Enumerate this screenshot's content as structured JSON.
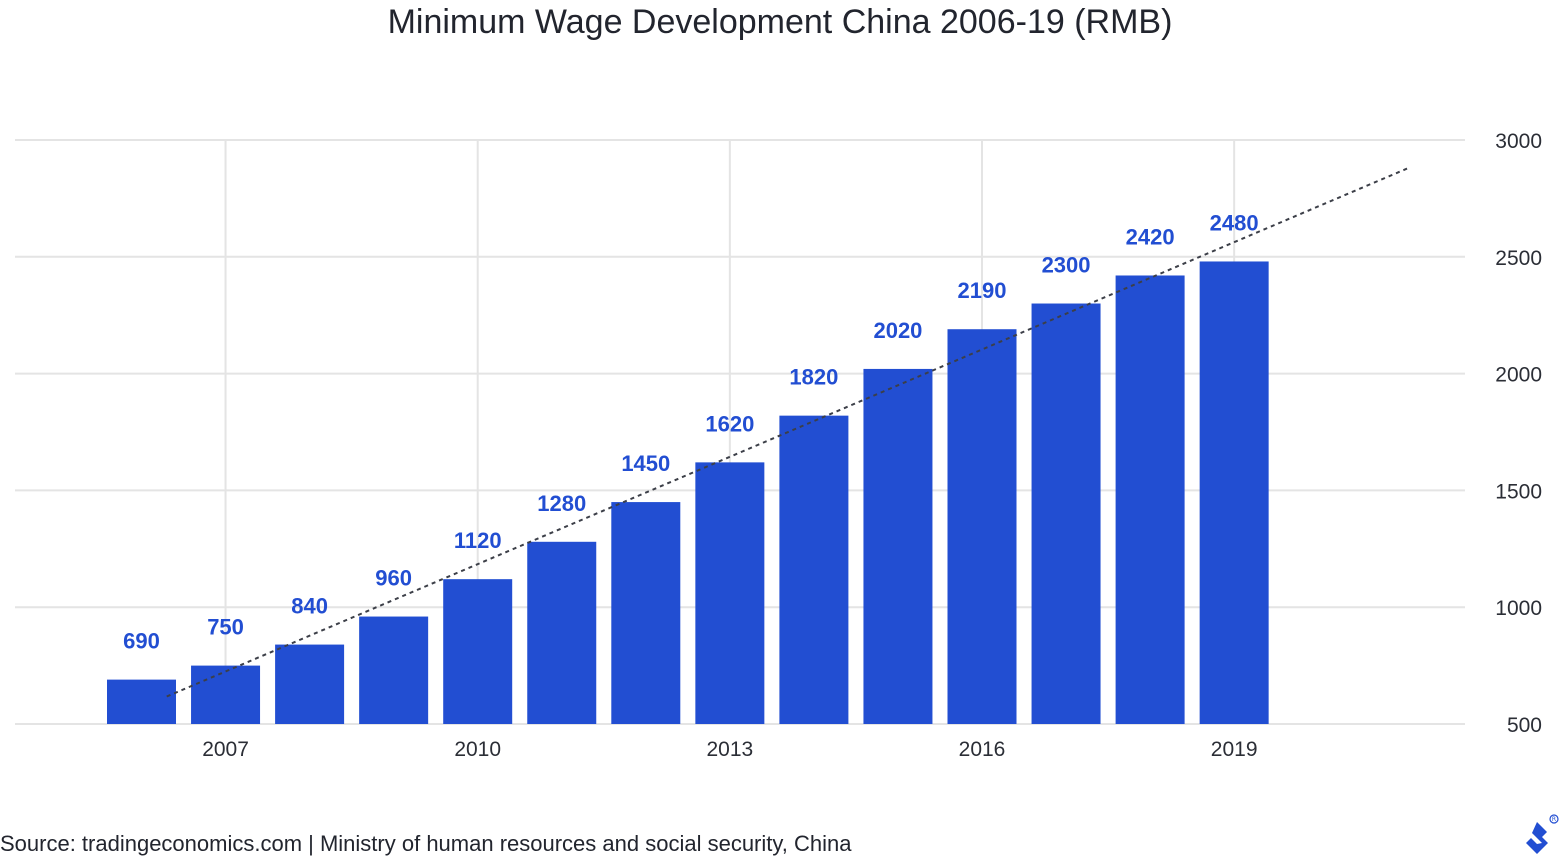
{
  "title": "Minimum Wage Development China 2006-19 (RMB)",
  "source": "Source: tradingeconomics.com | Ministry of human resources and social security, China",
  "colors": {
    "bar": "#224ed2",
    "label": "#224ed2",
    "grid": "#e4e4e4",
    "trend": "#3c3f48",
    "text": "#22252e"
  },
  "chart_data": {
    "type": "bar",
    "title": "Minimum Wage Development China 2006-19 (RMB)",
    "categories": [
      "2006",
      "2007",
      "2008",
      "2009",
      "2010",
      "2011",
      "2012",
      "2013",
      "2014",
      "2015",
      "2016",
      "2017",
      "2018",
      "2019"
    ],
    "values": [
      690,
      750,
      840,
      960,
      1120,
      1280,
      1450,
      1620,
      1820,
      2020,
      2190,
      2300,
      2420,
      2480
    ],
    "data_labels": [
      "690",
      "750",
      "840",
      "960",
      "1120",
      "1280",
      "1450",
      "1620",
      "1820",
      "2020",
      "2190",
      "2300",
      "2420",
      "2480"
    ],
    "x_tick_labels": [
      "2007",
      "2010",
      "2013",
      "2016",
      "2019"
    ],
    "y_ticks": [
      500,
      1000,
      1500,
      2000,
      2500,
      3000
    ],
    "y_axis_position": "right",
    "ylim": [
      500,
      3000
    ],
    "grid": true,
    "trendline": {
      "style": "dashed",
      "type": "linear"
    },
    "xlabel": "",
    "ylabel": ""
  }
}
